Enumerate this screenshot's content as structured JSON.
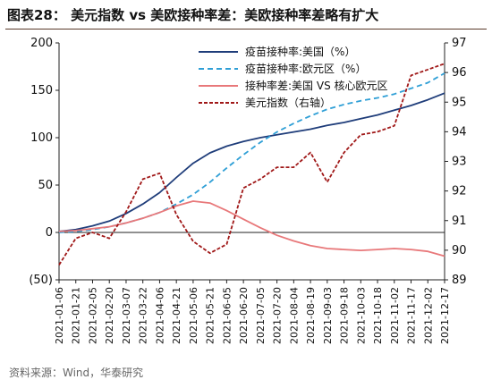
{
  "title": "图表28： 美元指数 vs 美欧接种率差：美欧接种率差略有扩大",
  "source": "资料来源：Wind，华泰研究",
  "chart_data": {
    "type": "line",
    "x": [
      "2021-01-06",
      "2021-01-21",
      "2021-02-05",
      "2021-02-20",
      "2021-03-07",
      "2021-03-22",
      "2021-04-06",
      "2021-04-21",
      "2021-05-06",
      "2021-05-21",
      "2021-06-05",
      "2021-06-20",
      "2021-07-05",
      "2021-07-20",
      "2021-08-04",
      "2021-08-19",
      "2021-09-03",
      "2021-09-18",
      "2021-10-03",
      "2021-10-18",
      "2021-11-02",
      "2021-11-17",
      "2021-12-02",
      "2021-12-17"
    ],
    "y_left": {
      "range": [
        -50,
        200
      ],
      "ticks": [
        200,
        150,
        100,
        50,
        0,
        -50
      ],
      "tick_labels": [
        "200",
        "150",
        "100",
        "50",
        "0",
        "(50)"
      ]
    },
    "y_right": {
      "range": [
        89,
        97
      ],
      "ticks": [
        97,
        96,
        95,
        94,
        93,
        92,
        91,
        90,
        89
      ],
      "tick_labels": [
        "97",
        "96",
        "95",
        "94",
        "93",
        "92",
        "91",
        "90",
        "89"
      ]
    },
    "legend_position": "top-right",
    "series": [
      {
        "name": "疫苗接种率:美国（%）",
        "axis": "left",
        "color": "#1f3d7a",
        "style": "solid",
        "values": [
          1,
          3,
          7,
          12,
          20,
          30,
          42,
          58,
          73,
          84,
          91,
          96,
          100,
          103,
          106,
          109,
          113,
          116,
          120,
          124,
          129,
          134,
          140,
          147
        ]
      },
      {
        "name": "疫苗接种率:欧元区（%）",
        "axis": "left",
        "color": "#2f9fd6",
        "style": "dashed",
        "values": [
          0,
          1,
          3,
          6,
          10,
          15,
          21,
          30,
          40,
          53,
          68,
          82,
          95,
          106,
          115,
          123,
          130,
          135,
          139,
          142,
          146,
          152,
          158,
          168
        ]
      },
      {
        "name": "接种率差:美国 VS 核心欧元区",
        "axis": "left",
        "color": "#e8787a",
        "style": "solid",
        "values": [
          1,
          2,
          4,
          6,
          10,
          15,
          21,
          28,
          33,
          31,
          23,
          14,
          5,
          -3,
          -9,
          -14,
          -17,
          -18,
          -19,
          -18,
          -17,
          -18,
          -20,
          -25
        ]
      },
      {
        "name": "美元指数（右轴）",
        "axis": "right",
        "color": "#a01818",
        "style": "dashed",
        "values": [
          89.5,
          90.4,
          90.6,
          90.4,
          91.3,
          92.4,
          92.6,
          91.2,
          90.3,
          89.9,
          90.2,
          92.1,
          92.4,
          92.8,
          92.8,
          93.3,
          92.3,
          93.3,
          93.9,
          94.0,
          94.2,
          95.9,
          96.1,
          96.3
        ]
      }
    ]
  }
}
